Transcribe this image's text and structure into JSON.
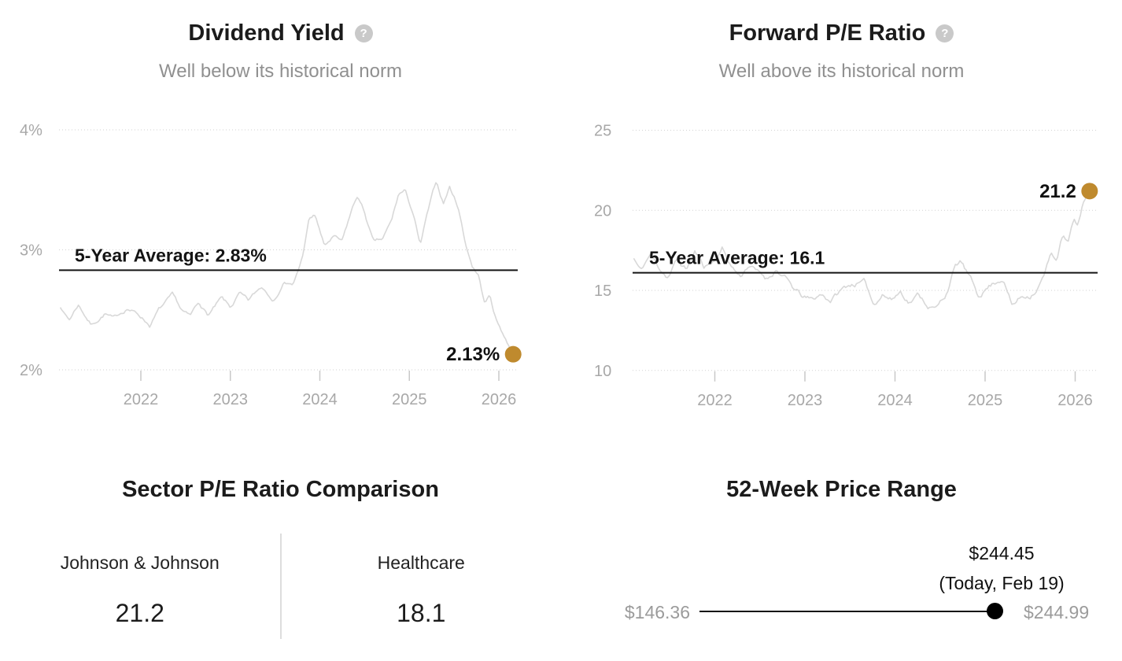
{
  "chart_data": [
    {
      "type": "line",
      "id": "dividend-yield",
      "title": "Dividend Yield",
      "subtitle": "Well below its historical norm",
      "help_glyph": "?",
      "xlim": [
        2021.1,
        2026.25
      ],
      "ylim": [
        2,
        4
      ],
      "grid": "dotted-horizontal",
      "y_ticks": [
        {
          "v": 4,
          "label": "4%"
        },
        {
          "v": 3,
          "label": "3%"
        },
        {
          "v": 2,
          "label": "2%"
        }
      ],
      "x_ticks": [
        {
          "v": 2022,
          "label": "2022"
        },
        {
          "v": 2023,
          "label": "2023"
        },
        {
          "v": 2024,
          "label": "2024"
        },
        {
          "v": 2025,
          "label": "2025"
        },
        {
          "v": 2026,
          "label": "2026"
        }
      ],
      "average_line": {
        "value": 2.83,
        "label": "5-Year Average: 2.83%"
      },
      "current_point": {
        "x": 2026.16,
        "value": 2.13,
        "label": "2.13%"
      },
      "series": [
        {
          "name": "dividend-yield-history",
          "keypoints": [
            [
              2021.1,
              2.52
            ],
            [
              2021.2,
              2.42
            ],
            [
              2021.3,
              2.55
            ],
            [
              2021.45,
              2.38
            ],
            [
              2021.6,
              2.48
            ],
            [
              2021.7,
              2.42
            ],
            [
              2021.85,
              2.52
            ],
            [
              2022.0,
              2.45
            ],
            [
              2022.1,
              2.38
            ],
            [
              2022.2,
              2.5
            ],
            [
              2022.35,
              2.6
            ],
            [
              2022.45,
              2.48
            ],
            [
              2022.55,
              2.42
            ],
            [
              2022.65,
              2.55
            ],
            [
              2022.75,
              2.45
            ],
            [
              2022.9,
              2.58
            ],
            [
              2023.0,
              2.5
            ],
            [
              2023.1,
              2.62
            ],
            [
              2023.2,
              2.55
            ],
            [
              2023.35,
              2.68
            ],
            [
              2023.5,
              2.6
            ],
            [
              2023.6,
              2.75
            ],
            [
              2023.7,
              2.7
            ],
            [
              2023.8,
              2.92
            ],
            [
              2023.88,
              3.25
            ],
            [
              2023.95,
              3.28
            ],
            [
              2024.05,
              3.02
            ],
            [
              2024.15,
              3.1
            ],
            [
              2024.25,
              3.05
            ],
            [
              2024.35,
              3.3
            ],
            [
              2024.42,
              3.44
            ],
            [
              2024.5,
              3.3
            ],
            [
              2024.6,
              3.05
            ],
            [
              2024.7,
              3.07
            ],
            [
              2024.8,
              3.22
            ],
            [
              2024.88,
              3.45
            ],
            [
              2024.95,
              3.48
            ],
            [
              2025.05,
              3.28
            ],
            [
              2025.12,
              3.02
            ],
            [
              2025.2,
              3.28
            ],
            [
              2025.3,
              3.55
            ],
            [
              2025.38,
              3.38
            ],
            [
              2025.45,
              3.52
            ],
            [
              2025.55,
              3.35
            ],
            [
              2025.62,
              3.08
            ],
            [
              2025.7,
              2.88
            ],
            [
              2025.78,
              2.78
            ],
            [
              2025.84,
              2.56
            ],
            [
              2025.9,
              2.62
            ],
            [
              2025.97,
              2.42
            ],
            [
              2026.04,
              2.32
            ],
            [
              2026.1,
              2.22
            ],
            [
              2026.16,
              2.13
            ]
          ]
        }
      ]
    },
    {
      "type": "line",
      "id": "forward-pe",
      "title": "Forward P/E Ratio",
      "subtitle": "Well above its historical norm",
      "help_glyph": "?",
      "xlim": [
        2021.1,
        2026.25
      ],
      "ylim": [
        10,
        25
      ],
      "grid": "dotted-horizontal",
      "y_ticks": [
        {
          "v": 25,
          "label": "25"
        },
        {
          "v": 20,
          "label": "20"
        },
        {
          "v": 15,
          "label": "15"
        },
        {
          "v": 10,
          "label": "10"
        }
      ],
      "x_ticks": [
        {
          "v": 2022,
          "label": "2022"
        },
        {
          "v": 2023,
          "label": "2023"
        },
        {
          "v": 2024,
          "label": "2024"
        },
        {
          "v": 2025,
          "label": "2025"
        },
        {
          "v": 2026,
          "label": "2026"
        }
      ],
      "average_line": {
        "value": 16.1,
        "label": "5-Year Average: 16.1"
      },
      "current_point": {
        "x": 2026.16,
        "value": 21.2,
        "label": "21.2"
      },
      "series": [
        {
          "name": "forward-pe-history",
          "keypoints": [
            [
              2021.1,
              17.0
            ],
            [
              2021.18,
              16.2
            ],
            [
              2021.28,
              17.2
            ],
            [
              2021.38,
              16.4
            ],
            [
              2021.48,
              15.9
            ],
            [
              2021.58,
              16.9
            ],
            [
              2021.68,
              16.3
            ],
            [
              2021.78,
              17.4
            ],
            [
              2021.88,
              16.5
            ],
            [
              2021.98,
              16.8
            ],
            [
              2022.08,
              17.7
            ],
            [
              2022.18,
              16.6
            ],
            [
              2022.28,
              15.9
            ],
            [
              2022.38,
              16.7
            ],
            [
              2022.48,
              16.1
            ],
            [
              2022.58,
              15.7
            ],
            [
              2022.68,
              16.4
            ],
            [
              2022.78,
              15.8
            ],
            [
              2022.88,
              15.0
            ],
            [
              2022.98,
              14.5
            ],
            [
              2023.08,
              14.3
            ],
            [
              2023.18,
              14.7
            ],
            [
              2023.28,
              14.4
            ],
            [
              2023.38,
              14.9
            ],
            [
              2023.48,
              15.3
            ],
            [
              2023.58,
              15.5
            ],
            [
              2023.67,
              15.4
            ],
            [
              2023.76,
              14.1
            ],
            [
              2023.86,
              14.9
            ],
            [
              2023.96,
              14.5
            ],
            [
              2024.06,
              15.0
            ],
            [
              2024.16,
              14.4
            ],
            [
              2024.26,
              14.8
            ],
            [
              2024.36,
              14.2
            ],
            [
              2024.46,
              13.9
            ],
            [
              2024.56,
              14.7
            ],
            [
              2024.66,
              16.4
            ],
            [
              2024.73,
              16.8
            ],
            [
              2024.82,
              15.8
            ],
            [
              2024.92,
              14.6
            ],
            [
              2025.02,
              15.2
            ],
            [
              2025.12,
              15.6
            ],
            [
              2025.2,
              15.9
            ],
            [
              2025.3,
              14.1
            ],
            [
              2025.4,
              14.6
            ],
            [
              2025.5,
              14.8
            ],
            [
              2025.58,
              15.3
            ],
            [
              2025.66,
              16.1
            ],
            [
              2025.74,
              17.4
            ],
            [
              2025.79,
              16.9
            ],
            [
              2025.86,
              18.4
            ],
            [
              2025.92,
              17.9
            ],
            [
              2025.99,
              19.3
            ],
            [
              2026.03,
              18.9
            ],
            [
              2026.09,
              20.5
            ],
            [
              2026.16,
              21.2
            ]
          ]
        }
      ]
    }
  ],
  "sector_comparison": {
    "title": "Sector P/E Ratio Comparison",
    "items": [
      {
        "name": "Johnson & Johnson",
        "value": "21.2"
      },
      {
        "name": "Healthcare",
        "value": "18.1"
      }
    ]
  },
  "price_range": {
    "title": "52-Week Price Range",
    "low": "$146.36",
    "high": "$244.99",
    "current_price": "$244.45",
    "current_date": "(Today, Feb 19)"
  },
  "colors": {
    "accent_dot": "#bf8a2e",
    "series_line": "#d8d8d8",
    "average_line": "#141414",
    "grid": "#d2d2d2",
    "tick": "#c8c8c8",
    "axis_text": "#a8a8a8",
    "subtitle_text": "#909090",
    "title_text": "#1b1b1b",
    "price_text": "#9b9b9b",
    "range_marker": "#000000",
    "help_icon_bg": "#c9c9c9"
  }
}
